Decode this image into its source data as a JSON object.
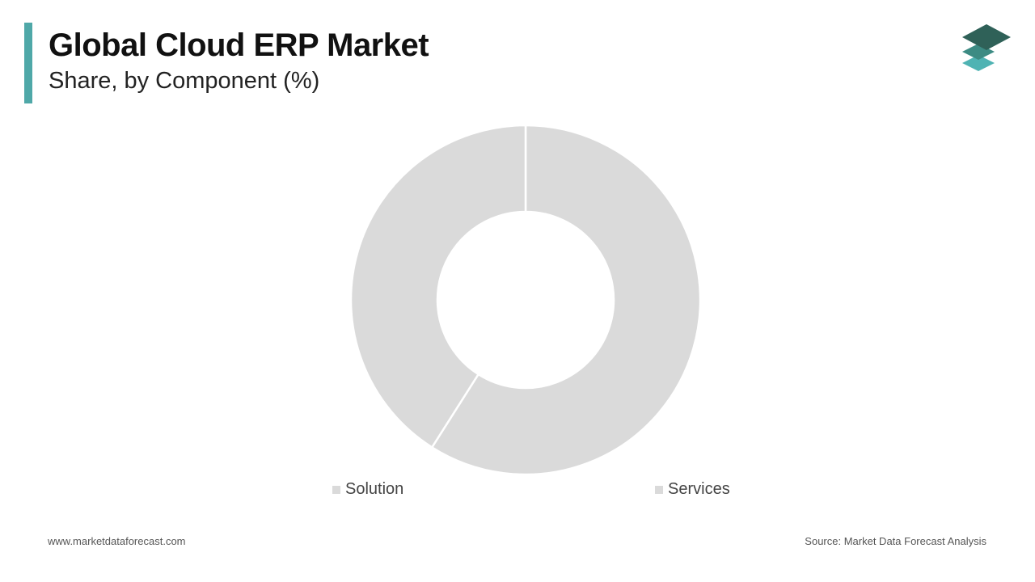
{
  "header": {
    "title": "Global Cloud ERP Market",
    "subtitle": "Share, by Component (%)",
    "accent_color": "#4fa8a8"
  },
  "logo": {
    "icon": "stacked-layers-logo-icon"
  },
  "chart_data": {
    "type": "pie",
    "variant": "donut",
    "title": "Global Cloud ERP Market",
    "subtitle": "Share, by Component (%)",
    "categories": [
      "Solution",
      "Services"
    ],
    "values": [
      59,
      41
    ],
    "unit": "%",
    "colors": [
      "#dadada",
      "#dadada"
    ],
    "legend": {
      "placement": "bottom",
      "entries": [
        "Solution",
        "Services"
      ]
    }
  },
  "footer": {
    "website": "www.marketdataforecast.com",
    "source": "Source: Market Data Forecast Analysis"
  }
}
